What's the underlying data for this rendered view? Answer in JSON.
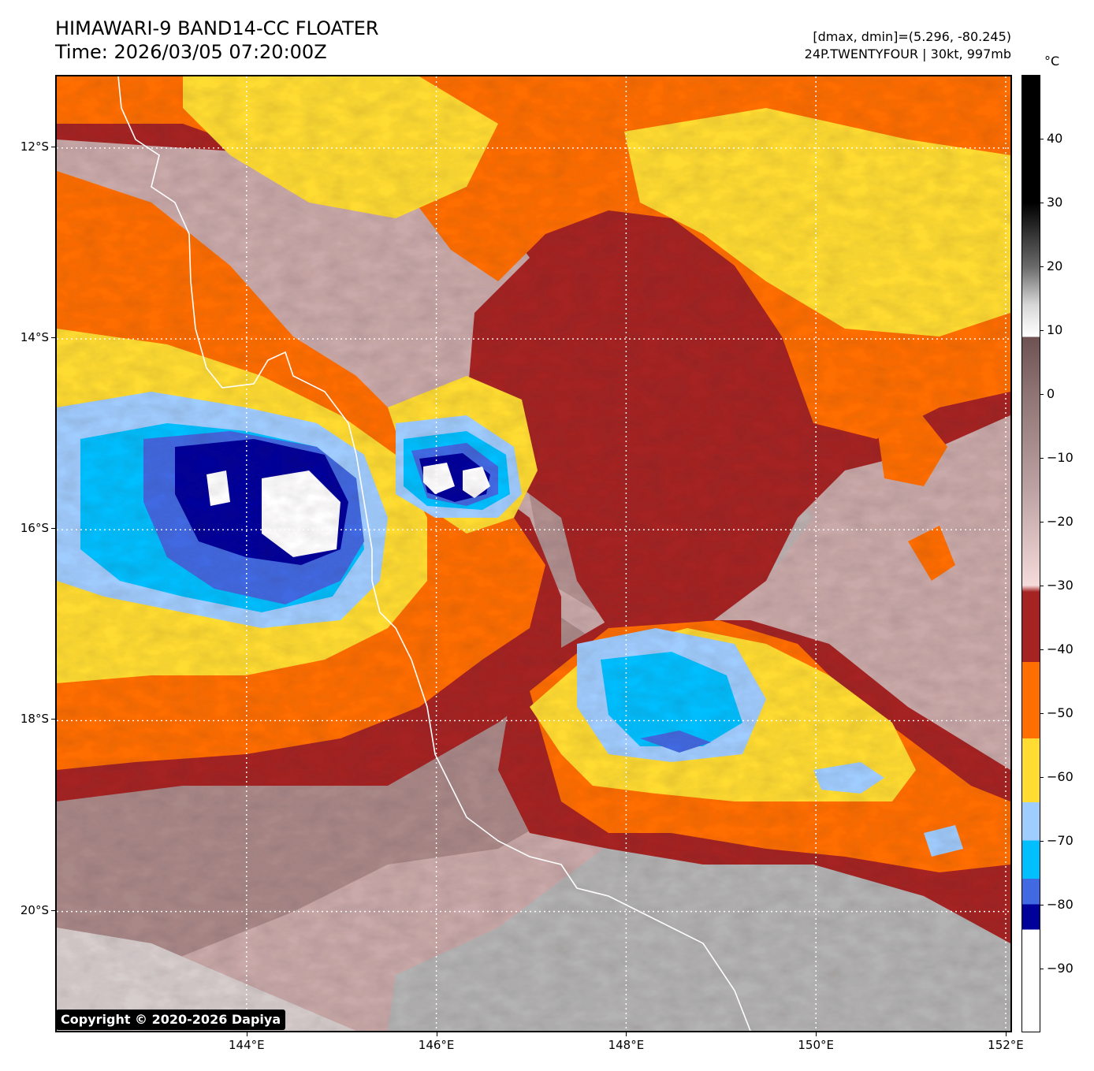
{
  "header": {
    "title_line1": "HIMAWARI-9 BAND14-CC FLOATER",
    "title_line2": "Time: 2026/03/05 07:20:00Z",
    "stats": "[dmax, dmin]=(5.296, -80.245)",
    "storm": "24P.TWENTYFOUR | 30kt, 997mb"
  },
  "map": {
    "lon_range": [
      142.0,
      152.05
    ],
    "lat_range": [
      -21.25,
      -11.25
    ],
    "lat_ticks": [
      {
        "value": -12,
        "label": "12°S"
      },
      {
        "value": -14,
        "label": "14°S"
      },
      {
        "value": -16,
        "label": "16°S"
      },
      {
        "value": -18,
        "label": "18°S"
      },
      {
        "value": -20,
        "label": "20°S"
      }
    ],
    "lon_ticks": [
      {
        "value": 144,
        "label": "144°E"
      },
      {
        "value": 146,
        "label": "146°E"
      },
      {
        "value": 148,
        "label": "148°E"
      },
      {
        "value": 150,
        "label": "150°E"
      },
      {
        "value": 152,
        "label": "152°E"
      }
    ],
    "copyright": "Copyright © 2020-2026 Dapiya"
  },
  "colorbar": {
    "unit": "°C",
    "range": [
      -100,
      50
    ],
    "labels": [
      {
        "value": 40,
        "label": "40"
      },
      {
        "value": 30,
        "label": "30"
      },
      {
        "value": 20,
        "label": "20"
      },
      {
        "value": 10,
        "label": "10"
      },
      {
        "value": 0,
        "label": "0"
      },
      {
        "value": -10,
        "label": "−10"
      },
      {
        "value": -20,
        "label": "−20"
      },
      {
        "value": -30,
        "label": "−30"
      },
      {
        "value": -40,
        "label": "−40"
      },
      {
        "value": -50,
        "label": "−50"
      },
      {
        "value": -60,
        "label": "−60"
      },
      {
        "value": -70,
        "label": "−70"
      },
      {
        "value": -80,
        "label": "−80"
      },
      {
        "value": -90,
        "label": "−90"
      }
    ],
    "colors": {
      "black": "#000000",
      "white": "#ffffff",
      "warm_brown": "#6e5252",
      "pale_pink": "#f5dada",
      "dark_red": "#a52323",
      "orange": "#ff6e00",
      "yellow": "#ffdc32",
      "light_blue": "#a0cdff",
      "cyan": "#00bfff",
      "royal_blue": "#4169e1",
      "navy": "#00009b",
      "gray_land": "#9a9a9a"
    }
  }
}
